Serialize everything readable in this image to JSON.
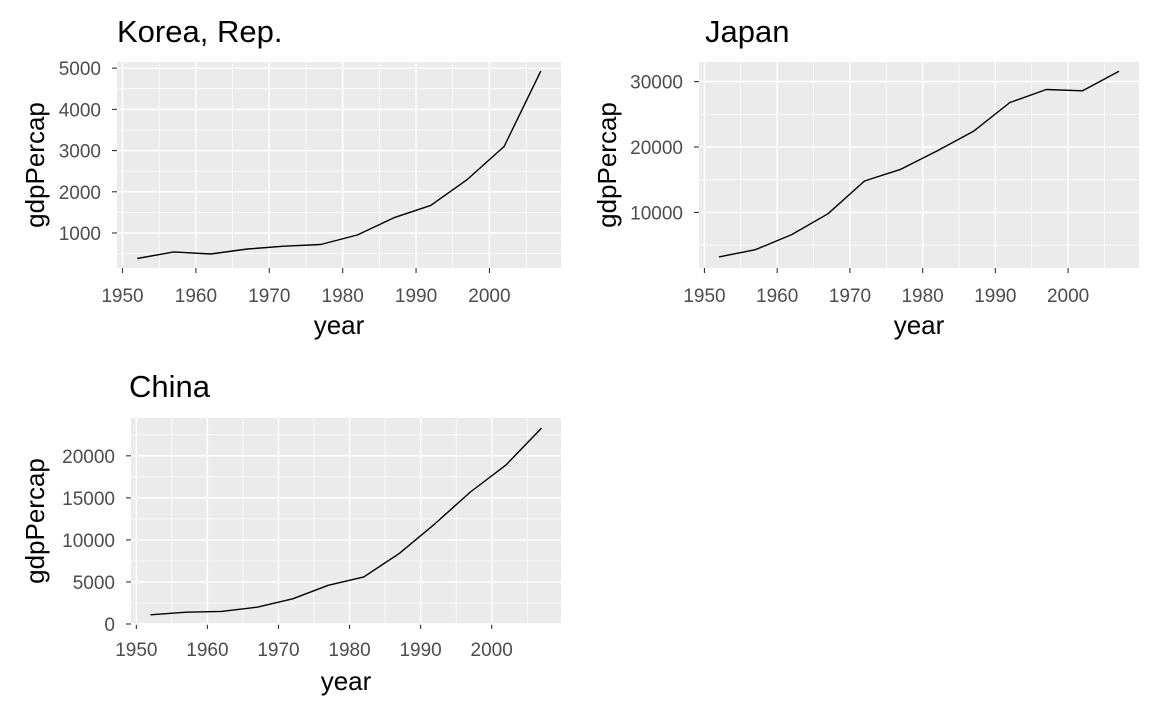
{
  "chart_data": [
    {
      "type": "line",
      "title": "Korea, Rep.",
      "xlabel": "year",
      "ylabel": "gdpPercap",
      "xlim": [
        1949.25,
        2009.75
      ],
      "ylim": [
        150,
        5150
      ],
      "x_ticks": [
        1950,
        1960,
        1970,
        1980,
        1990,
        2000
      ],
      "y_ticks": [
        1000,
        2000,
        3000,
        4000,
        5000
      ],
      "grid": true,
      "series": [
        {
          "x": [
            1952,
            1957,
            1962,
            1967,
            1972,
            1977,
            1982,
            1987,
            1992,
            1997,
            2002,
            2007
          ],
          "y": [
            380,
            540,
            490,
            610,
            680,
            720,
            950,
            1370,
            1670,
            2300,
            3100,
            4930
          ]
        }
      ]
    },
    {
      "type": "line",
      "title": "Japan",
      "xlabel": "year",
      "ylabel": "gdpPercap",
      "xlim": [
        1949.25,
        2009.75
      ],
      "ylim": [
        1500,
        33000
      ],
      "x_ticks": [
        1950,
        1960,
        1970,
        1980,
        1990,
        2000
      ],
      "y_ticks": [
        10000,
        20000,
        30000
      ],
      "grid": true,
      "series": [
        {
          "x": [
            1952,
            1957,
            1962,
            1967,
            1972,
            1977,
            1982,
            1987,
            1992,
            1997,
            2002,
            2007
          ],
          "y": [
            3200,
            4300,
            6600,
            9800,
            14800,
            16600,
            19400,
            22400,
            26800,
            28800,
            28600,
            31600
          ]
        }
      ]
    },
    {
      "type": "line",
      "title": "China",
      "xlabel": "year",
      "ylabel": "gdpPercap",
      "xlim": [
        1949.25,
        2009.75
      ],
      "ylim": [
        0,
        24500
      ],
      "x_ticks": [
        1950,
        1960,
        1970,
        1980,
        1990,
        2000
      ],
      "y_ticks": [
        0,
        5000,
        10000,
        15000,
        20000
      ],
      "grid": true,
      "series": [
        {
          "x": [
            1952,
            1957,
            1962,
            1967,
            1972,
            1977,
            1982,
            1987,
            1992,
            1997,
            2002,
            2007
          ],
          "y": [
            1100,
            1400,
            1500,
            2000,
            3000,
            4600,
            5600,
            8400,
            11900,
            15700,
            18900,
            23300
          ]
        }
      ]
    }
  ]
}
